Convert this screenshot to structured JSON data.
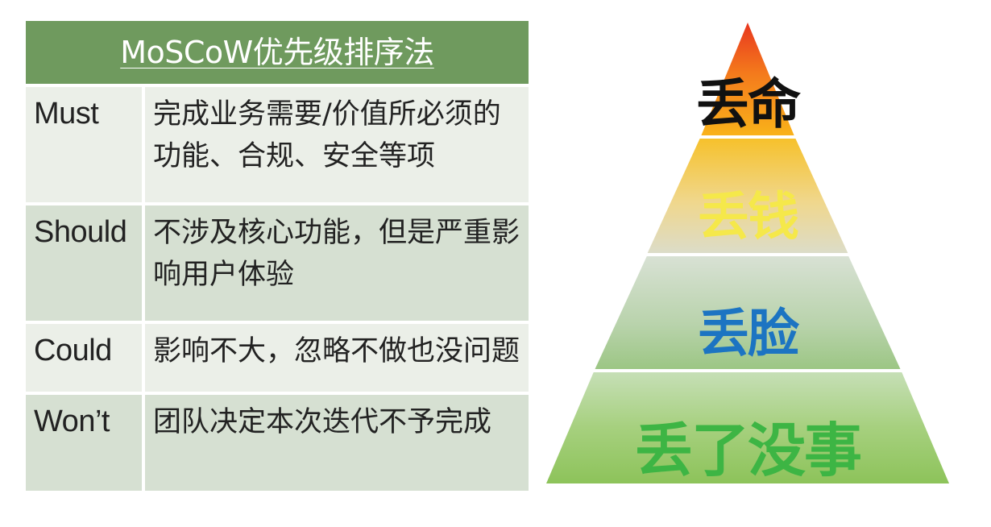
{
  "table": {
    "title": "MoSCoW优先级排序法",
    "rows": [
      {
        "label": "Must",
        "desc_line1": "完成业务需要/价值所必须的",
        "desc_line2": "功能、合规、安全等项"
      },
      {
        "label": "Should",
        "desc_line1": "不涉及核心功能，但是严重影",
        "desc_line2": "响用户体验"
      },
      {
        "label": "Could",
        "desc_line1": "影响不大，忽略不做也没问题",
        "desc_line2": ""
      },
      {
        "label": "Won’t",
        "desc_line1": "团队决定本次迭代不予完成",
        "desc_line2": ""
      }
    ]
  },
  "pyramid": {
    "levels": [
      {
        "label": "丢命",
        "color": "#111111"
      },
      {
        "label": "丢钱",
        "color": "#f5e84a"
      },
      {
        "label": "丢脸",
        "color": "#1c74c2"
      },
      {
        "label": "丢了没事",
        "color": "#3db544"
      }
    ]
  },
  "colors": {
    "header_bg": "#6f9a5e",
    "row_dark": "#d6e0d2",
    "row_light": "#ebefe8"
  }
}
